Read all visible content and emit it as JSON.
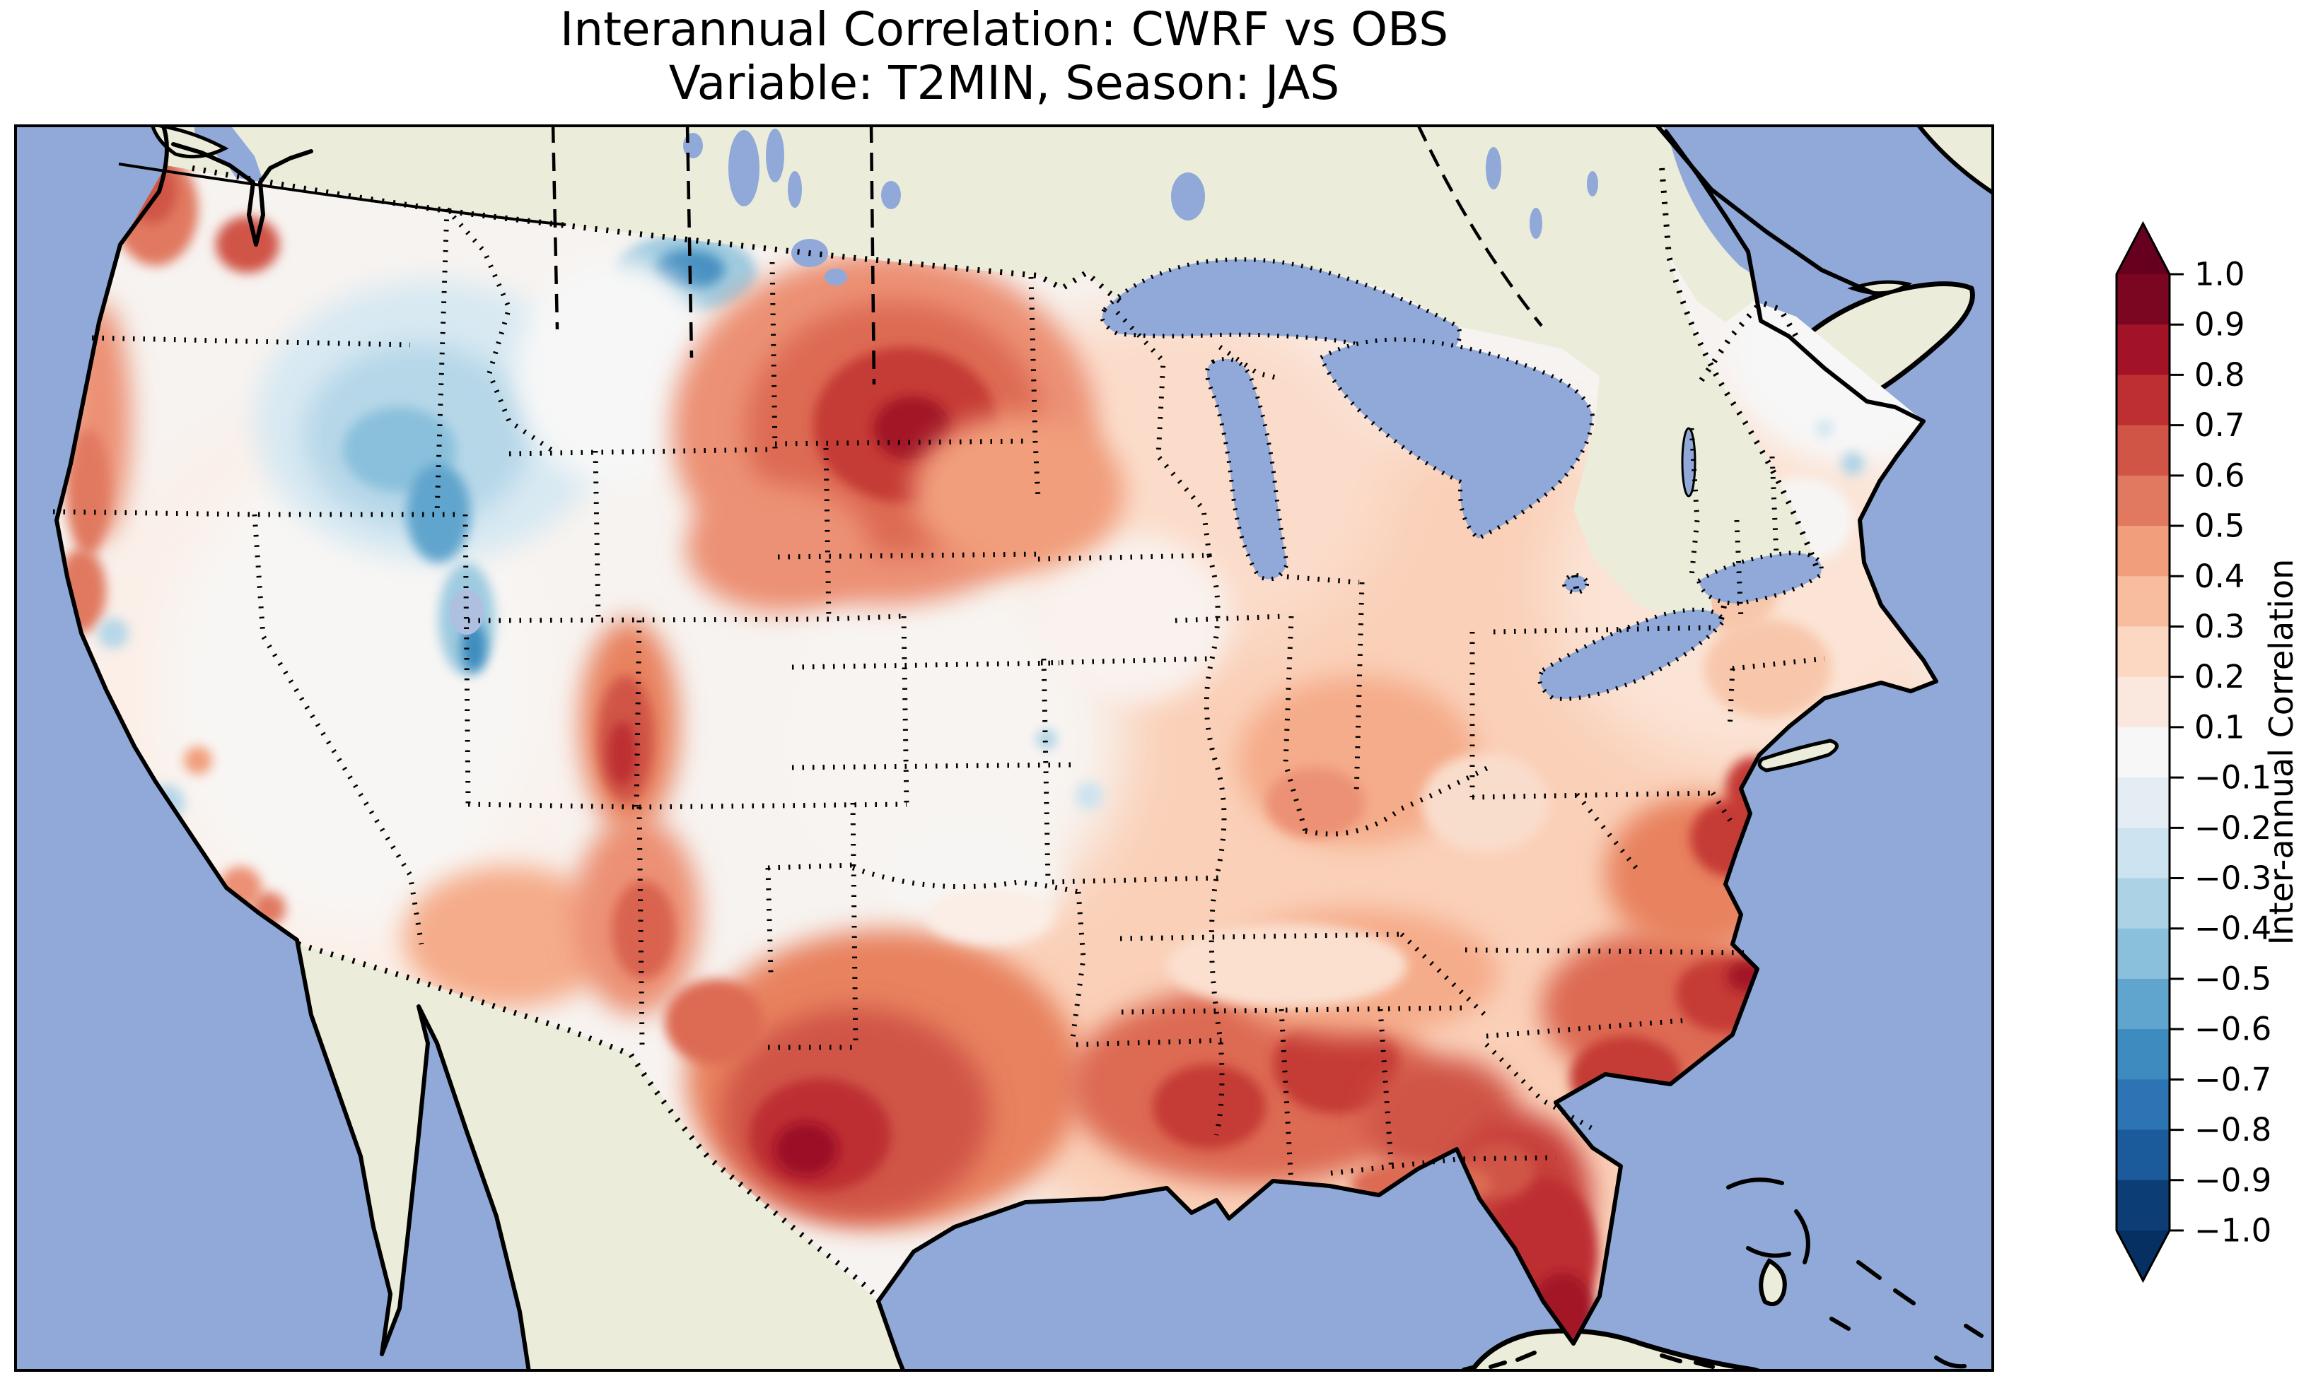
{
  "title": {
    "line1": "Interannual Correlation: CWRF vs OBS",
    "line2": "Variable: T2MIN, Season: JAS"
  },
  "map": {
    "ocean_color": "#90a9d8",
    "land_color": "#ececda",
    "coastline_color": "#000000",
    "state_border_style": "dotted black",
    "frame_color": "#000000"
  },
  "colorbar": {
    "label": "Inter-annual Correlation",
    "extend": "both",
    "over_color": "#67001f",
    "under_color": "#053061",
    "tick_labels": [
      "1.0",
      "0.9",
      "0.8",
      "0.7",
      "0.6",
      "0.5",
      "0.4",
      "0.3",
      "0.2",
      "0.1",
      "−0.1",
      "−0.2",
      "−0.3",
      "−0.4",
      "−0.5",
      "−0.6",
      "−0.7",
      "−0.8",
      "−0.9",
      "−1.0"
    ],
    "segment_colors_top_to_bottom": [
      "#7b0622",
      "#a21328",
      "#bd2f30",
      "#d05546",
      "#e17960",
      "#f19e7c",
      "#f8bc9f",
      "#fcd8c3",
      "#fae8de",
      "#f7f7f7",
      "#e3edf3",
      "#cde3ef",
      "#acd2e6",
      "#8ac0db",
      "#60a5cd",
      "#3e8cbf",
      "#2c74b3",
      "#1b5b9c",
      "#0c3e75"
    ]
  },
  "chart_data": {
    "type": "heatmap",
    "subtype": "filled_contour_map",
    "title": "Interannual Correlation: CWRF vs OBS",
    "subtitle": "Variable: T2MIN, Season: JAS",
    "variable": "T2MIN",
    "season": "JAS",
    "series_compared": [
      "CWRF",
      "OBS"
    ],
    "region": "Continental United States (CWRF model domain)",
    "colormap": "RdBu_r",
    "colorbar_label": "Inter-annual Correlation",
    "levels": [
      -1.0,
      -0.9,
      -0.8,
      -0.7,
      -0.6,
      -0.5,
      -0.4,
      -0.3,
      -0.2,
      -0.1,
      0.1,
      0.2,
      0.3,
      0.4,
      0.5,
      0.6,
      0.7,
      0.8,
      0.9,
      1.0
    ],
    "value_range": [
      -1.0,
      1.0
    ],
    "legend_position": "right",
    "approx_values_by_region": [
      {
        "region": "Washington / Oregon coast",
        "correlation": 0.6
      },
      {
        "region": "Puget Sound / western Washington",
        "correlation": 0.5
      },
      {
        "region": "Northern Rockies (Idaho / western Montana)",
        "correlation": -0.4
      },
      {
        "region": "Montana-Canada border pocket",
        "correlation": -0.6
      },
      {
        "region": "Eastern Montana / Dakotas",
        "correlation": 0.8
      },
      {
        "region": "Great Basin (Nevada / Utah)",
        "correlation": 0.0
      },
      {
        "region": "California Central Valley and coast",
        "correlation": 0.1
      },
      {
        "region": "Colorado Rockies / four corners ridge",
        "correlation": 0.6
      },
      {
        "region": "Central plains (Nebraska / Kansas / Oklahoma)",
        "correlation": 0.1
      },
      {
        "region": "South-central Texas",
        "correlation": 0.8
      },
      {
        "region": "Gulf coast (Louisiana / Mississippi / Alabama)",
        "correlation": 0.6
      },
      {
        "region": "Georgia / South Carolina",
        "correlation": 0.6
      },
      {
        "region": "Florida peninsula",
        "correlation": 0.85
      },
      {
        "region": "Carolinas coast / Outer Banks",
        "correlation": 0.7
      },
      {
        "region": "Mid-Atlantic (Chesapeake / New Jersey)",
        "correlation": 0.6
      },
      {
        "region": "Ohio valley / Midwest",
        "correlation": 0.3
      },
      {
        "region": "Upper Midwest (Minnesota / Wisconsin)",
        "correlation": 0.2
      },
      {
        "region": "Southern New England",
        "correlation": 0.2
      },
      {
        "region": "Maine",
        "correlation": 0.0
      },
      {
        "region": "Tennessee valley",
        "correlation": 0.3
      }
    ]
  }
}
